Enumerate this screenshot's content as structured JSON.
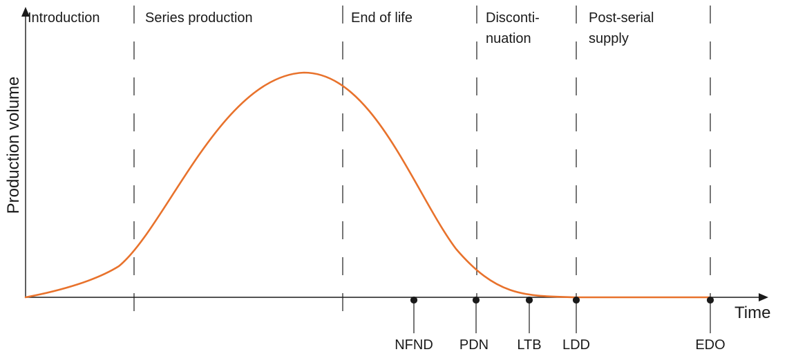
{
  "axes": {
    "x_label": "Time",
    "y_label": "Production volume"
  },
  "phases": [
    {
      "id": "introduction",
      "lines": [
        "Introduction"
      ]
    },
    {
      "id": "series-production",
      "lines": [
        "Series production"
      ]
    },
    {
      "id": "end-of-life",
      "lines": [
        "End of life"
      ]
    },
    {
      "id": "discontinuation",
      "lines": [
        "Disconti-",
        "nuation"
      ]
    },
    {
      "id": "post-serial-supply",
      "lines": [
        "Post-serial",
        "supply"
      ]
    }
  ],
  "milestones": [
    {
      "id": "nfnd",
      "label": "NFND"
    },
    {
      "id": "pdn",
      "label": "PDN"
    },
    {
      "id": "ltb",
      "label": "LTB"
    },
    {
      "id": "ldd",
      "label": "LDD"
    },
    {
      "id": "edo",
      "label": "EDO"
    }
  ],
  "colors": {
    "curve": "#e8722c",
    "axis": "#1a1a1a"
  }
}
